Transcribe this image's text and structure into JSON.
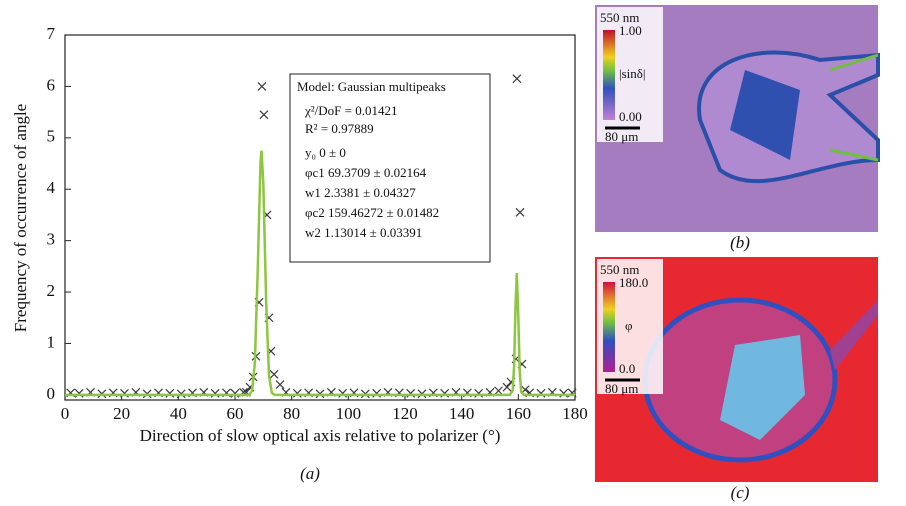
{
  "chart_data": {
    "type": "scatter",
    "xlabel": "Direction of slow optical axis relative to polarizer (°)",
    "ylabel": "Frequency of occurrence of angle",
    "caption": "(a)",
    "xlim": [
      0,
      180
    ],
    "xticks": [
      0,
      20,
      40,
      60,
      80,
      100,
      120,
      140,
      160,
      180
    ],
    "ylim": [
      -0.1,
      7
    ],
    "yticks": [
      0,
      1,
      2,
      3,
      4,
      5,
      6,
      7
    ],
    "series": [
      {
        "type": "scatter",
        "color": "#3a3a3a",
        "x": [
          2,
          5,
          9,
          13,
          17,
          21,
          25,
          29,
          33,
          37,
          41,
          45,
          49,
          53,
          57,
          60,
          63,
          64,
          65.3,
          66.4,
          67.4,
          68.5,
          69.5,
          70.2,
          71.3,
          72,
          72.7,
          73.8,
          75.9,
          78,
          82,
          86,
          90,
          94,
          98,
          102,
          106,
          110,
          114,
          118,
          122,
          126,
          130,
          134,
          138,
          142,
          146,
          150,
          153,
          156,
          157.4,
          159.2,
          159.5,
          160.6,
          161.3,
          162.4,
          164,
          168,
          172,
          176,
          179
        ],
        "values": [
          0.04,
          0.03,
          0.05,
          0.02,
          0.04,
          0.03,
          0.05,
          0.02,
          0.04,
          0.03,
          0.02,
          0.04,
          0.05,
          0.03,
          0.04,
          0.03,
          0.05,
          0.05,
          0.15,
          0.35,
          0.75,
          1.8,
          6.0,
          5.45,
          3.5,
          1.5,
          0.85,
          0.4,
          0.2,
          0.05,
          0.03,
          0.04,
          0.02,
          0.05,
          0.03,
          0.04,
          0.02,
          0.03,
          0.05,
          0.04,
          0.03,
          0.02,
          0.04,
          0.03,
          0.05,
          0.04,
          0.03,
          0.05,
          0.08,
          0.15,
          0.25,
          0.7,
          6.15,
          3.55,
          0.6,
          0.1,
          0.04,
          0.03,
          0.05,
          0.03,
          0.04
        ]
      },
      {
        "type": "line",
        "color": "#8dc63f",
        "x": [
          0,
          60,
          64,
          65,
          66,
          67,
          68,
          69,
          69.37,
          70,
          71,
          72,
          73,
          74,
          78,
          150,
          157,
          158,
          158.5,
          159,
          159.46,
          160,
          160.5,
          161,
          162,
          180
        ],
        "values": [
          0,
          0,
          0,
          0.004,
          0.074,
          0.61,
          2.39,
          4.52,
          4.75,
          4.11,
          1.8,
          0.38,
          0.038,
          0,
          0,
          0,
          0,
          0.084,
          0.56,
          1.7,
          2.37,
          1.5,
          0.44,
          0.058,
          0,
          0
        ]
      }
    ],
    "annotations": [
      "Model: Gaussian multipeaks",
      "χ²/DoF = 0.01421",
      "R² = 0.97889",
      "y₀  0 ± 0",
      "φc1  69.3709 ± 0.02164",
      "w1  2.3381 ± 0.04327",
      "φc2  159.46272 ± 0.01482",
      "w2  1.13014 ± 0.03391"
    ]
  },
  "panels": [
    {
      "wavelength": "550 nm",
      "scale_max": "1.00",
      "scale_min": "0.00",
      "quantity": "|sinδ|",
      "scale_bar": "80 μm",
      "caption": "(b)"
    },
    {
      "wavelength": "550 nm",
      "scale_max": "180.0",
      "scale_min": "0.0",
      "quantity": "φ",
      "scale_bar": "80 μm",
      "caption": "(c)"
    }
  ]
}
